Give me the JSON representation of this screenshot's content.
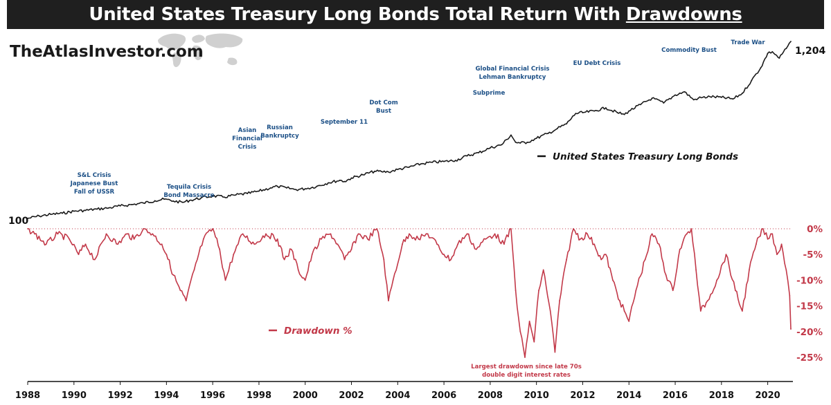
{
  "header": {
    "title_main": "United States Treasury Long Bonds Total Return With",
    "title_highlight": "Drawdowns"
  },
  "brand": {
    "name": "TheAtlasInvestor.com"
  },
  "colors": {
    "line": "#1a1a1a",
    "drawdown": "#c23848",
    "annotation": "#1b4f86",
    "title_bg": "#1f1f1f"
  },
  "chart_data": {
    "type": "line",
    "title": "United States Treasury Long Bonds Total Return With Drawdowns",
    "xlim": [
      1988,
      2021
    ],
    "x_ticks": [
      "1988",
      "1990",
      "1992",
      "1994",
      "1996",
      "1998",
      "2000",
      "2002",
      "2004",
      "2006",
      "2008",
      "2010",
      "2012",
      "2014",
      "2016",
      "2018",
      "2020"
    ],
    "series": [
      {
        "name": "United States Treasury Long Bonds",
        "start_label": "100",
        "end_label": "1,204",
        "x": [
          1988.0,
          1988.5,
          1989.0,
          1989.5,
          1990.0,
          1990.5,
          1991.0,
          1991.5,
          1992.0,
          1992.5,
          1993.0,
          1993.5,
          1993.9,
          1994.3,
          1994.7,
          1995.0,
          1995.5,
          1996.0,
          1996.5,
          1997.0,
          1997.5,
          1998.0,
          1998.5,
          1998.8,
          1999.2,
          1999.6,
          2000.0,
          2000.5,
          2001.0,
          2001.5,
          2001.7,
          2002.0,
          2002.5,
          2003.0,
          2003.3,
          2003.6,
          2004.0,
          2004.5,
          2005.0,
          2005.5,
          2006.0,
          2006.5,
          2007.0,
          2007.5,
          2008.0,
          2008.5,
          2008.9,
          2009.1,
          2009.3,
          2009.6,
          2010.0,
          2010.5,
          2010.9,
          2011.3,
          2011.7,
          2012.0,
          2012.5,
          2013.0,
          2013.5,
          2013.8,
          2014.0,
          2014.5,
          2015.0,
          2015.5,
          2016.0,
          2016.4,
          2016.8,
          2017.0,
          2017.5,
          2018.0,
          2018.5,
          2018.9,
          2019.3,
          2019.7,
          2020.0,
          2020.2,
          2020.5,
          2020.8,
          2021.0
        ],
        "values": [
          100,
          115,
          125,
          132,
          145,
          150,
          158,
          165,
          178,
          186,
          196,
          210,
          220,
          208,
          200,
          212,
          228,
          240,
          233,
          246,
          255,
          270,
          290,
          300,
          290,
          280,
          285,
          300,
          322,
          338,
          330,
          352,
          372,
          394,
          392,
          390,
          405,
          420,
          440,
          450,
          455,
          462,
          490,
          510,
          540,
          560,
          620,
          575,
          570,
          575,
          600,
          630,
          660,
          690,
          755,
          760,
          770,
          790,
          760,
          748,
          770,
          810,
          850,
          820,
          870,
          890,
          840,
          850,
          860,
          855,
          845,
          880,
          960,
          1040,
          1130,
          1140,
          1100,
          1160,
          1204
        ]
      },
      {
        "name": "Drawdown %",
        "ylim": [
          0,
          -27
        ],
        "y_ticks": [
          "0%",
          "-5%",
          "-10%",
          "-15%",
          "-20%",
          "-25%"
        ],
        "x": [
          1988.0,
          1988.3,
          1988.8,
          1989.3,
          1989.8,
          1990.2,
          1990.5,
          1990.9,
          1991.4,
          1991.9,
          1992.3,
          1992.6,
          1993.0,
          1993.4,
          1993.8,
          1994.0,
          1994.3,
          1994.6,
          1994.85,
          1995.2,
          1995.6,
          1996.0,
          1996.3,
          1996.55,
          1996.9,
          1997.3,
          1997.8,
          1998.3,
          1998.8,
          1999.1,
          1999.4,
          1999.7,
          2000.0,
          2000.3,
          2000.7,
          2001.1,
          2001.4,
          2001.7,
          2002.0,
          2002.3,
          2002.7,
          2003.1,
          2003.4,
          2003.6,
          2003.8,
          2004.2,
          2004.5,
          2004.9,
          2005.3,
          2005.7,
          2006.0,
          2006.3,
          2006.6,
          2007.0,
          2007.4,
          2007.8,
          2008.2,
          2008.6,
          2008.9,
          2009.1,
          2009.3,
          2009.5,
          2009.7,
          2009.9,
          2010.1,
          2010.3,
          2010.6,
          2010.8,
          2011.0,
          2011.3,
          2011.6,
          2011.9,
          2012.2,
          2012.5,
          2012.8,
          2013.0,
          2013.3,
          2013.6,
          2013.8,
          2014.0,
          2014.3,
          2014.7,
          2015.0,
          2015.3,
          2015.6,
          2015.9,
          2016.2,
          2016.5,
          2016.7,
          2016.9,
          2017.1,
          2017.4,
          2017.8,
          2018.2,
          2018.6,
          2018.9,
          2019.2,
          2019.5,
          2019.8,
          2020.0,
          2020.2,
          2020.4,
          2020.6,
          2020.8,
          2020.95,
          2021.0
        ],
        "values": [
          0,
          -1,
          -3,
          -1,
          -2,
          -5,
          -3,
          -6,
          -1,
          -3,
          -1,
          -2,
          0,
          -1,
          -3,
          -5,
          -9,
          -12,
          -14,
          -8,
          -2,
          0,
          -4,
          -10,
          -5,
          -1,
          -3,
          -1,
          -2,
          -6,
          -4,
          -8,
          -10,
          -5,
          -2,
          -1,
          -3,
          -6,
          -4,
          -1,
          -2,
          0,
          -6,
          -14,
          -10,
          -3,
          -1,
          -2,
          -1,
          -3,
          -5,
          -6,
          -3,
          -1,
          -4,
          -2,
          -1,
          -3,
          0,
          -12,
          -20,
          -25,
          -18,
          -22,
          -12,
          -8,
          -16,
          -24,
          -14,
          -6,
          0,
          -2,
          -1,
          -3,
          -6,
          -5,
          -10,
          -14,
          -16,
          -18,
          -12,
          -6,
          -1,
          -3,
          -9,
          -12,
          -4,
          -1,
          0,
          -8,
          -16,
          -14,
          -10,
          -5,
          -12,
          -16,
          -8,
          -3,
          0,
          -2,
          -1,
          -5,
          -3,
          -8,
          -13,
          -19.5
        ]
      }
    ],
    "annotations": [
      {
        "lines": [
          "S&L Crisis",
          "Japanese Bust",
          "Fall of USSR"
        ],
        "color": "blue"
      },
      {
        "lines": [
          "Tequila Crisis",
          "Bond Massacre"
        ],
        "color": "blue"
      },
      {
        "lines": [
          "Asian",
          "Financial",
          "Crisis"
        ],
        "color": "blue"
      },
      {
        "lines": [
          "Russian",
          "Bankruptcy"
        ],
        "color": "blue"
      },
      {
        "lines": [
          "September 11"
        ],
        "color": "blue"
      },
      {
        "lines": [
          "Dot Com",
          "Bust"
        ],
        "color": "blue"
      },
      {
        "lines": [
          "Subprime"
        ],
        "color": "blue"
      },
      {
        "lines": [
          "Global Financial Crisis",
          "Lehman Bankruptcy"
        ],
        "color": "blue"
      },
      {
        "lines": [
          "EU Debt Crisis"
        ],
        "color": "blue"
      },
      {
        "lines": [
          "Commodity Bust"
        ],
        "color": "blue"
      },
      {
        "lines": [
          "Trade War"
        ],
        "color": "blue"
      },
      {
        "lines": [
          "Largest drawdown since late 70s",
          "double digit interest rates"
        ],
        "color": "red"
      }
    ],
    "legend": {
      "line_label": "United States Treasury Long Bonds",
      "drawdown_label": "Drawdown %"
    }
  }
}
